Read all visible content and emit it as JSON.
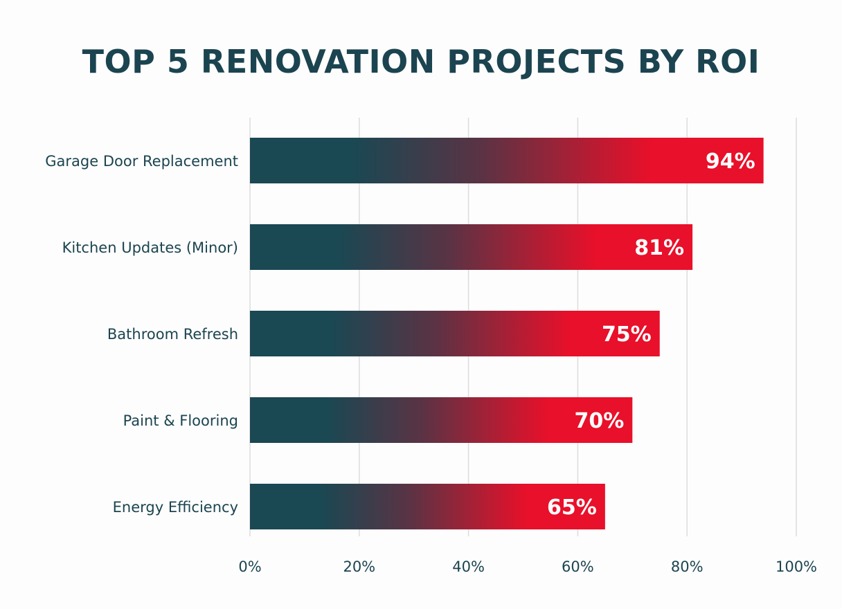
{
  "chart_data": {
    "type": "bar",
    "orientation": "horizontal",
    "title": "TOP 5 RENOVATION PROJECTS BY ROI",
    "categories": [
      "Garage Door Replacement",
      "Kitchen Updates (Minor)",
      "Bathroom Refresh",
      "Paint & Flooring",
      "Energy Efficiency"
    ],
    "values": [
      94,
      81,
      75,
      70,
      65
    ],
    "data_labels": [
      "94%",
      "81%",
      "75%",
      "70%",
      "65%"
    ],
    "xlim": [
      0,
      100
    ],
    "x_ticks": [
      0,
      20,
      40,
      60,
      80,
      100
    ],
    "x_tick_labels": [
      "0%",
      "20%",
      "40%",
      "60%",
      "80%",
      "100%"
    ],
    "grid": true,
    "colors": {
      "gradient_start": "#1a4853",
      "gradient_end": "#e8102a",
      "text": "#1b4450",
      "grid": "#dcdcdc"
    }
  }
}
